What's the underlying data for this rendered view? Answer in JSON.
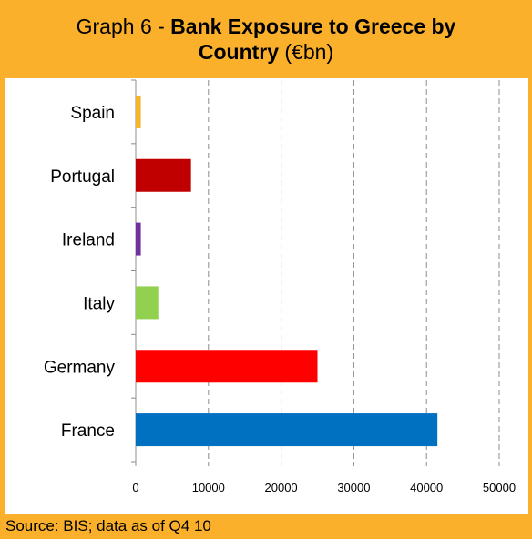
{
  "title": {
    "prefix": "Graph 6 - ",
    "bold_line1": "Bank Exposure to Greece by",
    "bold_line2": "Country",
    "suffix": " (€bn)"
  },
  "source": "Source: BIS; data as of Q4 10",
  "colors": {
    "frame": "#fbb02c",
    "grid": "#8c8c8c",
    "axis": "#8c8c8c"
  },
  "chart_data": {
    "type": "bar",
    "orientation": "horizontal",
    "categories": [
      "Spain",
      "Portugal",
      "Ireland",
      "Italy",
      "Germany",
      "France"
    ],
    "values": [
      700,
      7600,
      700,
      3100,
      25000,
      41500
    ],
    "bar_colors": [
      "#f6b32b",
      "#c00000",
      "#7030a0",
      "#92d050",
      "#ff0000",
      "#0070c0"
    ],
    "xlim": [
      0,
      50000
    ],
    "xticks": [
      "0",
      "10000",
      "20000",
      "30000",
      "40000",
      "50000"
    ],
    "grid": "vertical-dashed",
    "legend": "none"
  }
}
